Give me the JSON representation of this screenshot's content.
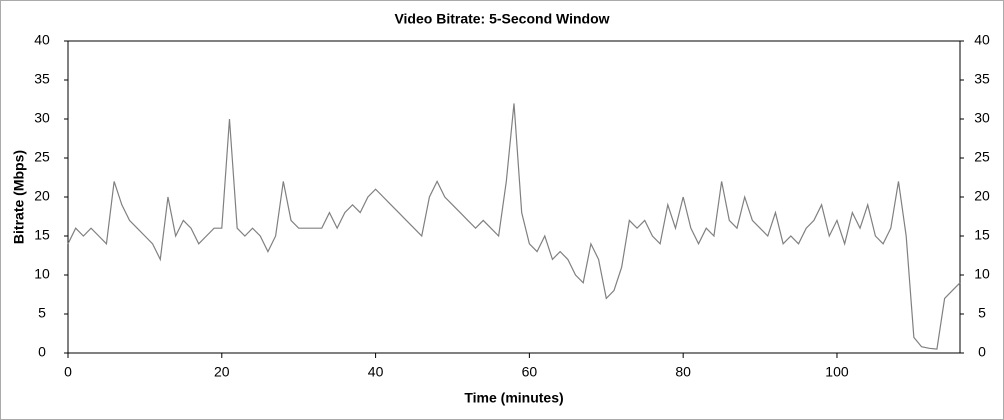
{
  "chart_data": {
    "type": "line",
    "title": "Video Bitrate: 5-Second Window",
    "xlabel": "Time (minutes)",
    "ylabel": "Bitrate (Mbps)",
    "x": [
      0,
      1,
      2,
      3,
      4,
      5,
      6,
      7,
      8,
      9,
      10,
      11,
      12,
      13,
      14,
      15,
      16,
      17,
      18,
      19,
      20,
      21,
      22,
      23,
      24,
      25,
      26,
      27,
      28,
      29,
      30,
      31,
      32,
      33,
      34,
      35,
      36,
      37,
      38,
      39,
      40,
      41,
      42,
      43,
      44,
      45,
      46,
      47,
      48,
      49,
      50,
      51,
      52,
      53,
      54,
      55,
      56,
      57,
      58,
      59,
      60,
      61,
      62,
      63,
      64,
      65,
      66,
      67,
      68,
      69,
      70,
      71,
      72,
      73,
      74,
      75,
      76,
      77,
      78,
      79,
      80,
      81,
      82,
      83,
      84,
      85,
      86,
      87,
      88,
      89,
      90,
      91,
      92,
      93,
      94,
      95,
      96,
      97,
      98,
      99,
      100,
      101,
      102,
      103,
      104,
      105,
      106,
      107,
      108,
      109,
      110,
      111,
      112,
      113,
      114,
      115,
      116
    ],
    "series": [
      {
        "name": "Bitrate",
        "color": "#808080",
        "values": [
          14,
          16,
          15,
          16,
          15,
          14,
          22,
          19,
          17,
          16,
          15,
          14,
          12,
          20,
          15,
          17,
          16,
          14,
          15,
          16,
          16,
          30,
          16,
          15,
          16,
          15,
          13,
          15,
          22,
          17,
          16,
          16,
          16,
          16,
          18,
          16,
          18,
          19,
          18,
          20,
          21,
          20,
          19,
          18,
          17,
          16,
          15,
          20,
          22,
          20,
          19,
          18,
          17,
          16,
          17,
          16,
          15,
          22,
          32,
          18,
          14,
          13,
          15,
          12,
          13,
          12,
          10,
          9,
          14,
          12,
          7,
          8,
          11,
          17,
          16,
          17,
          15,
          14,
          19,
          16,
          20,
          16,
          14,
          16,
          15,
          22,
          17,
          16,
          20,
          17,
          16,
          15,
          18,
          14,
          15,
          14,
          16,
          17,
          19,
          15,
          17,
          14,
          18,
          16,
          19,
          15,
          14,
          16,
          22,
          15,
          2,
          0.8,
          0.6,
          0.5,
          7,
          8,
          9
        ]
      }
    ],
    "xlim": [
      0,
      116
    ],
    "xticks": [
      0,
      20,
      40,
      60,
      80,
      100
    ],
    "ylim": [
      0,
      40
    ],
    "yticks": [
      0,
      5,
      10,
      15,
      20,
      25,
      30,
      35,
      40
    ],
    "y2lim": [
      0,
      40
    ],
    "y2ticks": [
      0,
      5,
      10,
      15,
      20,
      25,
      30,
      35,
      40
    ]
  }
}
